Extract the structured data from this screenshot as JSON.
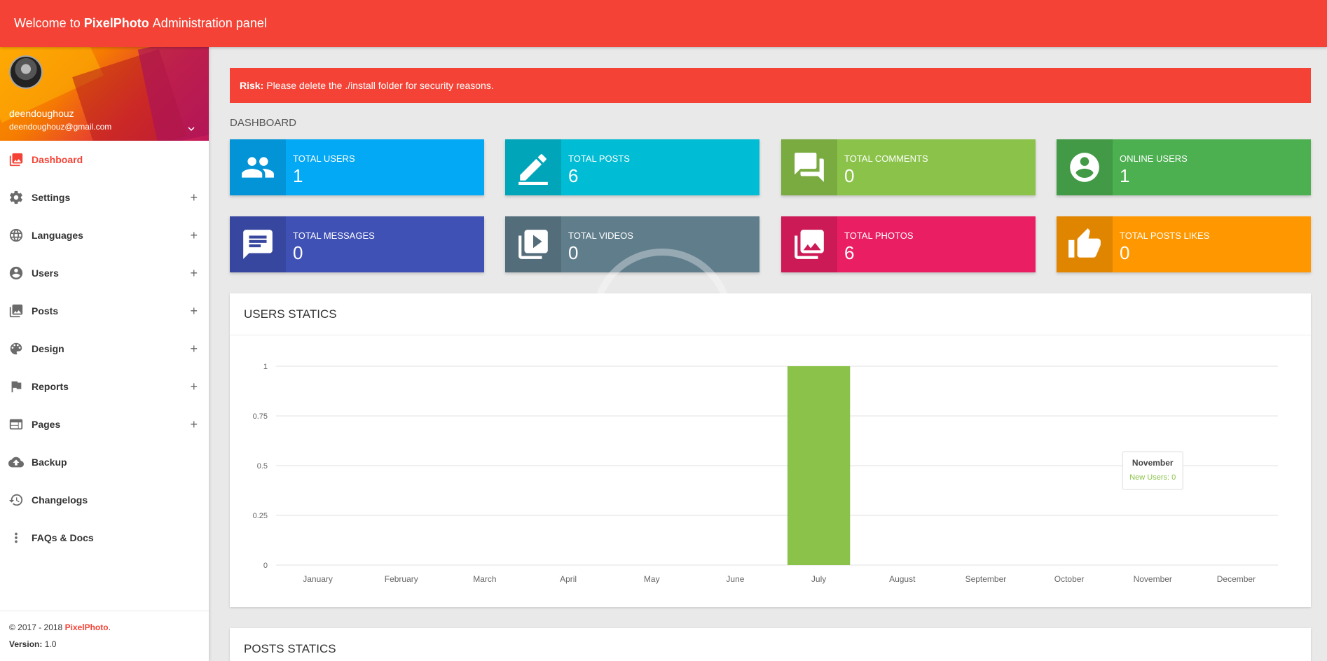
{
  "header": {
    "welcome": "Welcome to",
    "brand": "PixelPhoto",
    "suffix": "Administration panel"
  },
  "user": {
    "name": "deendoughouz",
    "email": "deendoughouz@gmail.com"
  },
  "menu": [
    {
      "label": "Dashboard",
      "icon": "image-icon",
      "expandable": false,
      "active": true
    },
    {
      "label": "Settings",
      "icon": "gear-icon",
      "expandable": true
    },
    {
      "label": "Languages",
      "icon": "globe-icon",
      "expandable": true
    },
    {
      "label": "Users",
      "icon": "user-circle-icon",
      "expandable": true
    },
    {
      "label": "Posts",
      "icon": "photo-library-icon",
      "expandable": true
    },
    {
      "label": "Design",
      "icon": "palette-icon",
      "expandable": true
    },
    {
      "label": "Reports",
      "icon": "flag-icon",
      "expandable": true
    },
    {
      "label": "Pages",
      "icon": "web-page-icon",
      "expandable": true
    },
    {
      "label": "Backup",
      "icon": "cloud-upload-icon",
      "expandable": false
    },
    {
      "label": "Changelogs",
      "icon": "history-icon",
      "expandable": false
    },
    {
      "label": "FAQs & Docs",
      "icon": "more-vertical-icon",
      "expandable": false
    }
  ],
  "footer": {
    "copyright": "© 2017 - 2018",
    "brand": "PixelPhoto",
    "version_label": "Version:",
    "version": "1.0"
  },
  "alert": {
    "label": "Risk:",
    "text": "Please delete the ./install folder for security reasons."
  },
  "dashboard_title": "DASHBOARD",
  "stats": [
    {
      "label": "TOTAL USERS",
      "value": "1",
      "color": "#03a9f4",
      "icon": "people-icon"
    },
    {
      "label": "TOTAL POSTS",
      "value": "6",
      "color": "#00bcd4",
      "icon": "pencil-icon"
    },
    {
      "label": "TOTAL COMMENTS",
      "value": "0",
      "color": "#8bc34a",
      "icon": "comments-icon"
    },
    {
      "label": "ONLINE USERS",
      "value": "1",
      "color": "#4caf50",
      "icon": "user-circle-icon"
    },
    {
      "label": "TOTAL MESSAGES",
      "value": "0",
      "color": "#3f51b5",
      "icon": "message-icon"
    },
    {
      "label": "TOTAL VIDEOS",
      "value": "0",
      "color": "#607d8b",
      "icon": "video-library-icon"
    },
    {
      "label": "TOTAL PHOTOS",
      "value": "6",
      "color": "#e91e63",
      "icon": "photo-library-icon"
    },
    {
      "label": "TOTAL POSTS LIKES",
      "value": "0",
      "color": "#ff9800",
      "icon": "thumbs-up-icon"
    }
  ],
  "users_card_title": "USERS STATICS",
  "posts_card_title": "POSTS STATICS",
  "chart_data": {
    "type": "bar",
    "title": "USERS STATICS",
    "categories": [
      "January",
      "February",
      "March",
      "April",
      "May",
      "June",
      "July",
      "August",
      "September",
      "October",
      "November",
      "December"
    ],
    "series": [
      {
        "name": "New Users",
        "values": [
          0,
          0,
          0,
          0,
          0,
          0,
          1,
          0,
          0,
          0,
          0,
          0
        ]
      }
    ],
    "ylim": [
      0,
      1
    ],
    "yticks": [
      "0",
      "0.25",
      "0.5",
      "0.75",
      "1"
    ],
    "grid": true,
    "bar_color": "#8bc34a",
    "tooltip": {
      "category": "November",
      "text": "New Users: 0"
    }
  }
}
